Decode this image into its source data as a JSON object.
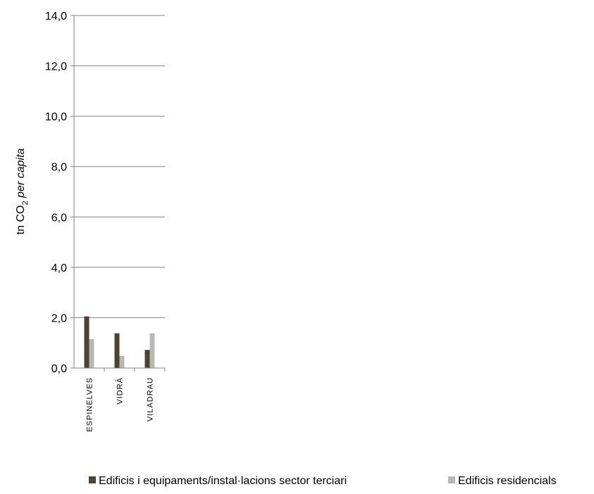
{
  "chart_data": {
    "type": "bar",
    "categories": [
      "ESPINELVES",
      "VIDRÀ",
      "VILADRAU"
    ],
    "series": [
      {
        "name": "Edificis i equipaments/instal·lacions sector terciari",
        "values": [
          2.05,
          1.38,
          0.72
        ],
        "color": "#4a4430"
      },
      {
        "name": "Edificis residencials",
        "values": [
          1.15,
          0.48,
          1.38
        ],
        "color": "#b8b8b8"
      }
    ],
    "ylabel": {
      "prefix": "tn CO",
      "subscript": "2",
      "suffix": " per capita"
    },
    "ylim": [
      0,
      14
    ],
    "yticks": [
      "0,0",
      "2,0",
      "4,0",
      "6,0",
      "8,0",
      "10,0",
      "12,0",
      "14,0"
    ],
    "grid": true,
    "legend_position": "bottom"
  }
}
